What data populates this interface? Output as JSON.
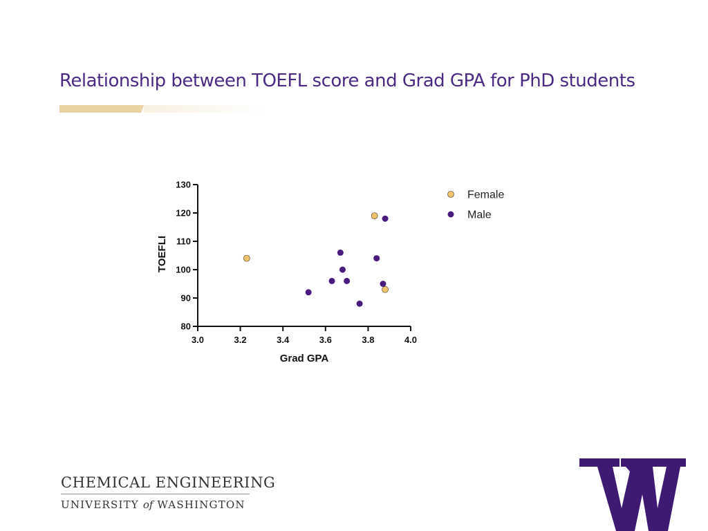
{
  "slide": {
    "title": "Relationship between TOEFL score and Grad GPA for PhD students",
    "accent_color": "#e8d3a2",
    "title_color": "#4b2a85"
  },
  "footer": {
    "department": "CHEMICAL ENGINEERING",
    "university_pre": "UNIVERSITY",
    "university_of": "of",
    "university_post": "WASHINGTON",
    "logo_letter": "W",
    "logo_color": "#3f1a72"
  },
  "chart_data": {
    "type": "scatter",
    "xlabel": "Grad GPA",
    "ylabel": "TOEFLI",
    "xlim": [
      3.0,
      4.0
    ],
    "ylim": [
      80,
      130
    ],
    "xticks": [
      "3.0",
      "3.2",
      "3.4",
      "3.6",
      "3.8",
      "4.0"
    ],
    "yticks": [
      "80",
      "90",
      "100",
      "110",
      "120",
      "130"
    ],
    "grid": false,
    "legend_position": "right",
    "series": [
      {
        "name": "Female",
        "color": "#f2c46c",
        "points": [
          [
            3.23,
            104
          ],
          [
            3.83,
            119
          ],
          [
            3.88,
            93
          ]
        ]
      },
      {
        "name": "Male",
        "color": "#4b1a7f",
        "points": [
          [
            3.52,
            92
          ],
          [
            3.63,
            96
          ],
          [
            3.67,
            106
          ],
          [
            3.68,
            100
          ],
          [
            3.7,
            96
          ],
          [
            3.76,
            88
          ],
          [
            3.84,
            104
          ],
          [
            3.87,
            95
          ],
          [
            3.88,
            118
          ]
        ]
      }
    ]
  }
}
